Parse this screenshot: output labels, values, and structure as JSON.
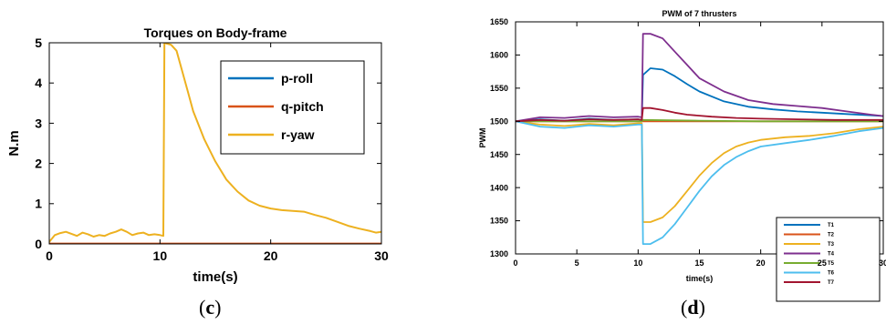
{
  "panels": {
    "c": "c",
    "d": "d"
  },
  "chart_data": [
    {
      "type": "line",
      "title": "Torques on Body-frame",
      "xlabel": "time(s)",
      "ylabel": "N.m",
      "xlim": [
        0,
        30
      ],
      "ylim": [
        0,
        5
      ],
      "xticks": [
        0,
        10,
        20,
        30
      ],
      "yticks": [
        0,
        1,
        2,
        3,
        4,
        5
      ],
      "grid": false,
      "legend_position": "top-right",
      "series": [
        {
          "name": "p-roll",
          "color": "#0072BD",
          "x": [
            0,
            30
          ],
          "y": [
            0,
            0
          ]
        },
        {
          "name": "q-pitch",
          "color": "#D95319",
          "x": [
            0,
            30
          ],
          "y": [
            0.01,
            0.01
          ]
        },
        {
          "name": "r-yaw",
          "color": "#EDB120",
          "x": [
            0,
            0.5,
            1,
            1.5,
            2,
            2.5,
            3,
            3.5,
            4,
            4.5,
            5,
            5.5,
            6,
            6.5,
            7,
            7.5,
            8,
            8.5,
            9,
            9.5,
            10,
            10.3,
            10.4,
            10.6,
            11,
            11.5,
            12,
            12.5,
            13,
            14,
            15,
            16,
            17,
            18,
            19,
            20,
            21,
            22,
            23,
            24,
            25,
            26,
            27,
            28,
            29,
            29.5,
            30
          ],
          "y": [
            0.05,
            0.22,
            0.27,
            0.3,
            0.25,
            0.2,
            0.28,
            0.24,
            0.18,
            0.22,
            0.2,
            0.26,
            0.3,
            0.36,
            0.3,
            0.22,
            0.26,
            0.28,
            0.22,
            0.24,
            0.22,
            0.2,
            5.0,
            4.98,
            4.95,
            4.8,
            4.3,
            3.8,
            3.3,
            2.6,
            2.05,
            1.6,
            1.3,
            1.08,
            0.95,
            0.88,
            0.84,
            0.82,
            0.8,
            0.72,
            0.65,
            0.55,
            0.45,
            0.38,
            0.32,
            0.28,
            0.3
          ]
        }
      ]
    },
    {
      "type": "line",
      "title": "PWM of 7 thrusters",
      "xlabel": "time(s)",
      "ylabel": "PWM",
      "xlim": [
        0,
        30
      ],
      "ylim": [
        1300,
        1650
      ],
      "xticks": [
        0,
        5,
        10,
        15,
        20,
        25,
        30
      ],
      "yticks": [
        1300,
        1350,
        1400,
        1450,
        1500,
        1550,
        1600,
        1650
      ],
      "grid": false,
      "legend_position": "bottom-right",
      "series": [
        {
          "name": "T1",
          "color": "#0072BD",
          "x": [
            0,
            2,
            4,
            6,
            8,
            10,
            10.3,
            10.4,
            11,
            12,
            13,
            14,
            15,
            17,
            19,
            21,
            23,
            25,
            27,
            29,
            30
          ],
          "y": [
            1500,
            1503,
            1501,
            1504,
            1502,
            1503,
            1502,
            1570,
            1580,
            1578,
            1568,
            1556,
            1545,
            1530,
            1522,
            1518,
            1515,
            1513,
            1511,
            1509,
            1508
          ]
        },
        {
          "name": "T2",
          "color": "#D95319",
          "x": [
            0,
            30
          ],
          "y": [
            1500,
            1500
          ]
        },
        {
          "name": "T3",
          "color": "#EDB120",
          "x": [
            0,
            2,
            4,
            6,
            8,
            10,
            10.3,
            10.4,
            11,
            12,
            13,
            14,
            15,
            16,
            17,
            18,
            19,
            20,
            22,
            24,
            26,
            28,
            30
          ],
          "y": [
            1500,
            1495,
            1493,
            1496,
            1494,
            1497,
            1497,
            1348,
            1348,
            1355,
            1372,
            1395,
            1418,
            1437,
            1452,
            1462,
            1468,
            1472,
            1476,
            1478,
            1482,
            1488,
            1492
          ]
        },
        {
          "name": "T4",
          "color": "#7E2F8E",
          "x": [
            0,
            2,
            4,
            6,
            8,
            10,
            10.3,
            10.4,
            11,
            12,
            13,
            14,
            15,
            17,
            19,
            21,
            23,
            25,
            27,
            29,
            30
          ],
          "y": [
            1500,
            1506,
            1505,
            1508,
            1506,
            1507,
            1506,
            1632,
            1632,
            1625,
            1605,
            1585,
            1565,
            1545,
            1532,
            1526,
            1523,
            1520,
            1515,
            1510,
            1508
          ]
        },
        {
          "name": "T5",
          "color": "#77AC30",
          "x": [
            0,
            10.3,
            10.4,
            15,
            20,
            30
          ],
          "y": [
            1500,
            1500,
            1502,
            1501,
            1500,
            1500
          ]
        },
        {
          "name": "T6",
          "color": "#4DBEEE",
          "x": [
            0,
            2,
            4,
            6,
            8,
            10,
            10.3,
            10.4,
            11,
            12,
            13,
            14,
            15,
            16,
            17,
            18,
            19,
            20,
            22,
            24,
            26,
            28,
            30
          ],
          "y": [
            1500,
            1492,
            1490,
            1494,
            1492,
            1495,
            1495,
            1315,
            1315,
            1325,
            1345,
            1370,
            1395,
            1417,
            1434,
            1446,
            1455,
            1462,
            1467,
            1472,
            1478,
            1485,
            1490
          ]
        },
        {
          "name": "T7",
          "color": "#A2142F",
          "x": [
            0,
            2,
            4,
            6,
            8,
            10,
            10.3,
            10.4,
            11,
            12,
            13,
            14,
            16,
            18,
            20,
            23,
            26,
            30
          ],
          "y": [
            1500,
            1502,
            1501,
            1503,
            1502,
            1503,
            1502,
            1520,
            1520,
            1517,
            1513,
            1510,
            1507,
            1505,
            1504,
            1503,
            1502,
            1502
          ]
        }
      ]
    }
  ]
}
